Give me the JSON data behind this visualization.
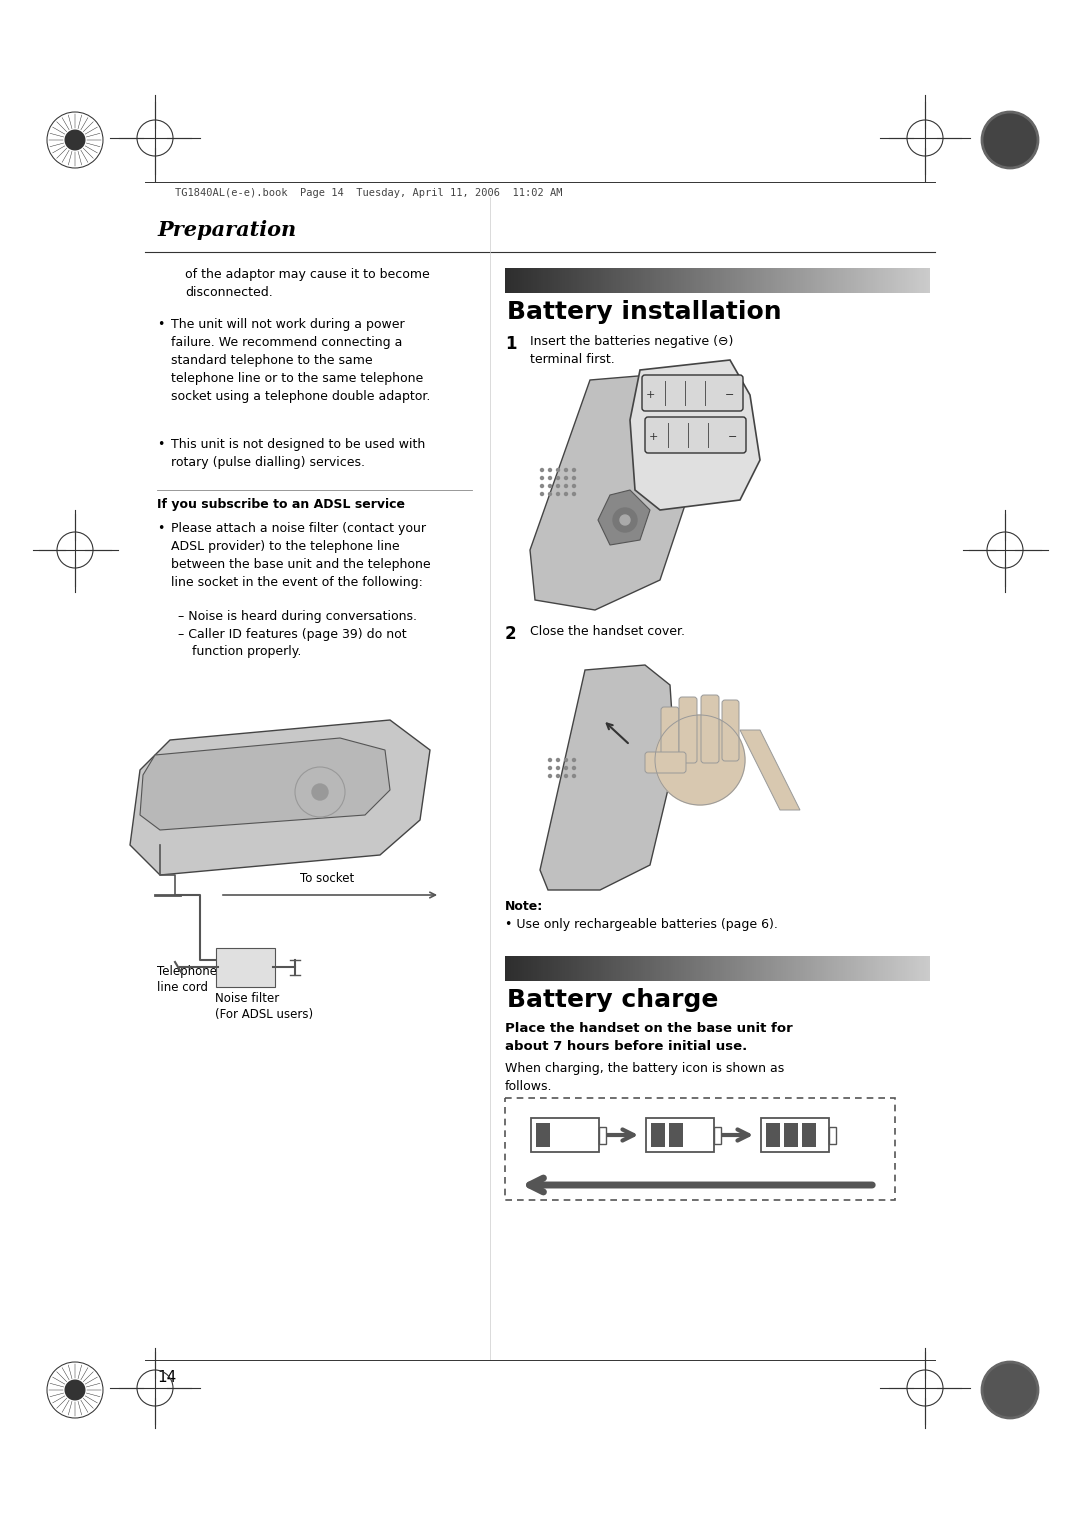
{
  "bg_color": "#ffffff",
  "header_text": "TG1840AL(e-e).book  Page 14  Tuesday, April 11, 2006  11:02 AM",
  "section_title": "Preparation",
  "right_section_title": "Battery installation",
  "right_section2_title": "Battery charge",
  "page_number": "14",
  "left_body": [
    "of the adaptor may cause it to become\ndisconnected.",
    "•The unit will not work during a power\n failure. We recommend connecting a\n standard telephone to the same\n telephone line or to the same telephone\n socket using a telephone double adaptor.",
    "•This unit is not designed to be used with\n rotary (pulse dialling) services."
  ],
  "adsl_title": "If you subscribe to an ADSL service",
  "adsl_body": [
    "•Please attach a noise filter (contact your\n  ADSL provider) to the telephone line\n  between the base unit and the telephone\n  line socket in the event of the following:",
    "– Noise is heard during conversations.",
    "– Caller ID features (page 39) do not\n    function properly."
  ],
  "step1_num": "1",
  "step1_text": "Insert the batteries negative (⊖)\nterminal first.",
  "step2_num": "2",
  "step2_text": "Close the handset cover.",
  "note_title": "Note:",
  "note_text": "• Use only rechargeable batteries (page 6).",
  "charge_bold": "Place the handset on the base unit for\nabout 7 hours before initial use.",
  "charge_normal": "When charging, the battery icon is shown as\nfollows.",
  "tel_label": "Telephone\nline cord",
  "socket_label": "To socket",
  "noise_label": "Noise filter\n(For ADSL users)"
}
